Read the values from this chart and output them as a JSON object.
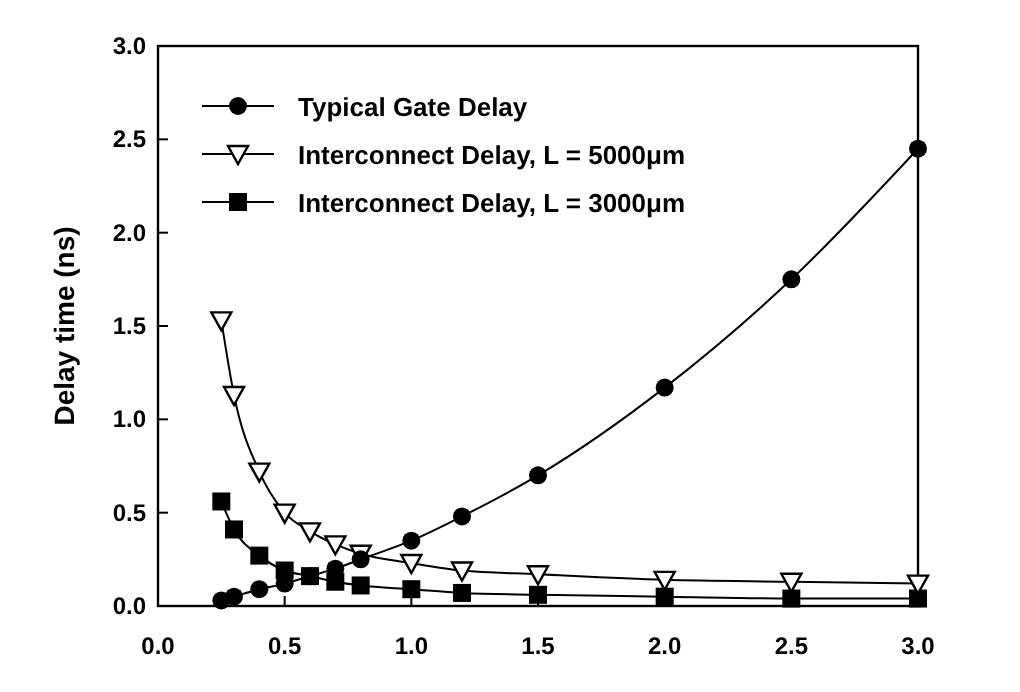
{
  "chart_data": {
    "type": "line",
    "ylabel": "Delay time (ns)",
    "x": [
      0.25,
      0.3,
      0.4,
      0.5,
      0.6,
      0.7,
      0.8,
      1.0,
      1.2,
      1.5,
      2.0,
      2.5,
      3.0
    ],
    "xlim": [
      0,
      3
    ],
    "xticks": [
      {
        "value": 0,
        "label": "0.0"
      },
      {
        "value": 0.5,
        "label": "0.5"
      },
      {
        "value": 1,
        "label": "1.0"
      },
      {
        "value": 1.5,
        "label": "1.5"
      },
      {
        "value": 2,
        "label": "2.0"
      },
      {
        "value": 2.5,
        "label": "2.5"
      },
      {
        "value": 3,
        "label": "3.0"
      }
    ],
    "ylim": [
      0,
      3
    ],
    "yticks": [
      {
        "value": 0,
        "label": "0.0"
      },
      {
        "value": 0.5,
        "label": "0.5"
      },
      {
        "value": 1,
        "label": "1.0"
      },
      {
        "value": 1.5,
        "label": "1.5"
      },
      {
        "value": 2,
        "label": "2.0"
      },
      {
        "value": 2.5,
        "label": "2.5"
      },
      {
        "value": 3,
        "label": "3.0"
      }
    ],
    "legend": "top left",
    "grid": false,
    "series": [
      {
        "name": "Typical Gate Delay",
        "color": "#000000",
        "marker": "circle",
        "values": [
          0.03,
          0.05,
          0.09,
          0.12,
          0.16,
          0.2,
          0.25,
          0.35,
          0.48,
          0.7,
          1.17,
          1.75,
          2.45
        ]
      },
      {
        "name": "Interconnect Delay, L = 5000μm",
        "color": "#000000",
        "marker": "triangle",
        "values": [
          1.53,
          1.13,
          0.72,
          0.5,
          0.4,
          0.33,
          0.28,
          0.23,
          0.19,
          0.17,
          0.14,
          0.13,
          0.12
        ]
      },
      {
        "name": "Interconnect Delay, L = 3000μm",
        "color": "#000000",
        "marker": "square",
        "values": [
          0.56,
          0.41,
          0.27,
          0.19,
          0.16,
          0.13,
          0.11,
          0.09,
          0.07,
          0.06,
          0.05,
          0.04,
          0.04
        ]
      }
    ]
  }
}
